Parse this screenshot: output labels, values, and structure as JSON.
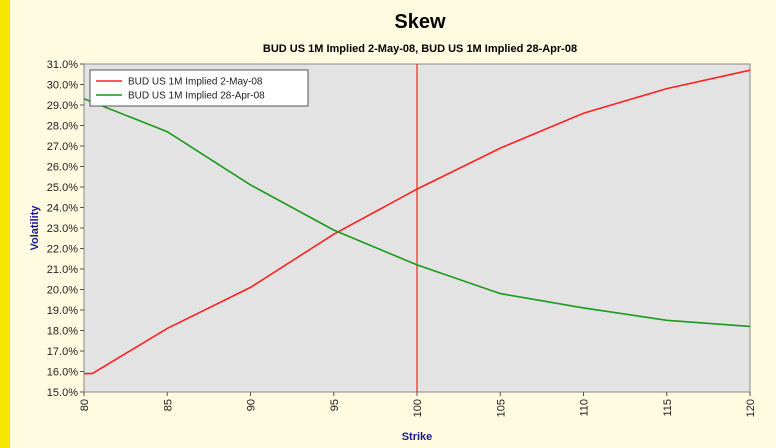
{
  "chart_data": {
    "type": "line",
    "title": "Skew",
    "subtitle": "BUD US 1M Implied  2-May-08, BUD US 1M Implied  28-Apr-08",
    "xlabel": "Strike",
    "ylabel": "Volatility",
    "x_ticks": [
      "80",
      "85",
      "90",
      "95",
      "100",
      "105",
      "110",
      "115",
      "120"
    ],
    "y_ticks": [
      "15.0%",
      "16.0%",
      "17.0%",
      "18.0%",
      "19.0%",
      "20.0%",
      "21.0%",
      "22.0%",
      "23.0%",
      "24.0%",
      "25.0%",
      "26.0%",
      "27.0%",
      "28.0%",
      "29.0%",
      "30.0%",
      "31.0%"
    ],
    "xlim": [
      80,
      120
    ],
    "ylim": [
      15.0,
      31.0
    ],
    "reference_line_x": 100,
    "grid": false,
    "legend_position": "top-left",
    "series": [
      {
        "name": "BUD US 1M Implied  2-May-08",
        "color": "#ff2020",
        "x": [
          80,
          80.5,
          85,
          90,
          95,
          100,
          105,
          110,
          115,
          120
        ],
        "y": [
          15.9,
          15.9,
          18.1,
          20.1,
          22.7,
          24.9,
          26.9,
          28.6,
          29.8,
          30.7
        ]
      },
      {
        "name": "BUD US 1M Implied  28-Apr-08",
        "color": "#1a9a1a",
        "x": [
          80,
          85,
          90,
          95,
          100,
          105,
          110,
          115,
          120
        ],
        "y": [
          29.3,
          27.7,
          25.1,
          22.9,
          21.2,
          19.8,
          19.1,
          18.5,
          18.2
        ]
      }
    ]
  }
}
